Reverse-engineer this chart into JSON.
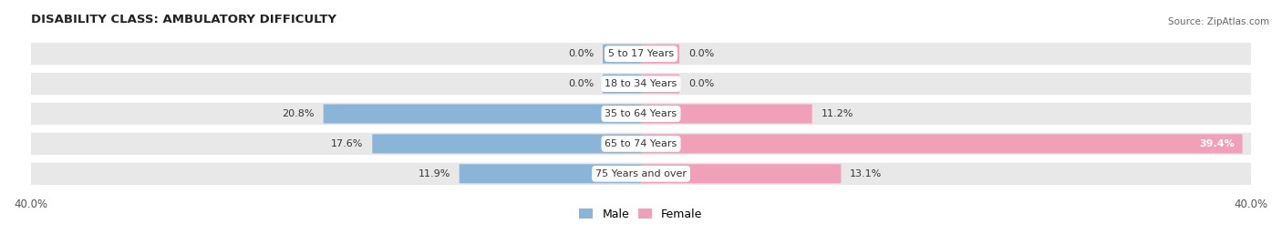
{
  "title": "DISABILITY CLASS: AMBULATORY DIFFICULTY",
  "source": "Source: ZipAtlas.com",
  "categories": [
    "5 to 17 Years",
    "18 to 34 Years",
    "35 to 64 Years",
    "65 to 74 Years",
    "75 Years and over"
  ],
  "male_values": [
    0.0,
    0.0,
    20.8,
    17.6,
    11.9
  ],
  "female_values": [
    0.0,
    0.0,
    11.2,
    39.4,
    13.1
  ],
  "x_max": 40.0,
  "male_color": "#8ab4d8",
  "female_color": "#f0a0b8",
  "bar_bg_color": "#e8e8e8",
  "bar_height": 0.62,
  "label_fontsize": 8.0,
  "title_fontsize": 9.5,
  "axis_label_fontsize": 8.5,
  "legend_fontsize": 9,
  "min_bar_display": 2.5
}
